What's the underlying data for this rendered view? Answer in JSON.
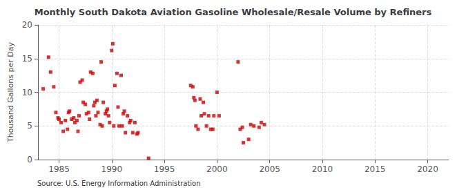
{
  "chart_data": {
    "type": "scatter",
    "title": "Monthly South Dakota Aviation Gasoline Wholesale/Resale Volume by Refiners",
    "ylabel": "Thousand Gallons per Day",
    "annotation": "Source: U.S. Energy Information Administration",
    "color": "#cc0000",
    "marker": "square",
    "grid": true,
    "xlim": [
      1983,
      2022
    ],
    "xticks": [
      1985,
      1990,
      1995,
      2000,
      2005,
      2010,
      2015,
      2020
    ],
    "ylim": [
      0,
      20
    ],
    "yticks": [
      0,
      5,
      10,
      15,
      20
    ],
    "x": [
      1983.5,
      1984.0,
      1984.2,
      1984.5,
      1984.7,
      1984.9,
      1985.0,
      1985.2,
      1985.4,
      1985.6,
      1985.8,
      1985.9,
      1986.0,
      1986.2,
      1986.4,
      1986.5,
      1986.7,
      1986.8,
      1986.9,
      1987.0,
      1987.2,
      1987.3,
      1987.5,
      1987.6,
      1987.8,
      1987.9,
      1988.0,
      1988.2,
      1988.3,
      1988.4,
      1988.5,
      1988.6,
      1988.7,
      1988.9,
      1989.0,
      1989.1,
      1989.2,
      1989.4,
      1989.5,
      1989.6,
      1989.7,
      1989.8,
      1990.0,
      1990.1,
      1990.2,
      1990.3,
      1990.5,
      1990.6,
      1990.7,
      1990.9,
      1991.0,
      1991.1,
      1991.2,
      1991.3,
      1991.5,
      1991.7,
      1991.8,
      1992.0,
      1992.2,
      1992.4,
      1992.5,
      1993.5,
      1997.5,
      1997.7,
      1997.8,
      1997.9,
      1998.0,
      1998.2,
      1998.4,
      1998.5,
      1998.7,
      1998.8,
      1999.0,
      1999.2,
      1999.4,
      1999.6,
      1999.7,
      2000.0,
      2000.2,
      2002.0,
      2002.2,
      2002.4,
      2002.5,
      2003.0,
      2003.2,
      2003.5,
      2004.0,
      2004.2,
      2004.5
    ],
    "values": [
      10.5,
      15.2,
      13.0,
      10.8,
      7.0,
      6.2,
      6.0,
      5.5,
      4.2,
      5.8,
      4.5,
      7.0,
      7.2,
      6.0,
      6.2,
      5.5,
      5.8,
      4.2,
      6.5,
      11.5,
      11.8,
      8.5,
      8.2,
      6.8,
      7.0,
      6.0,
      13.0,
      12.8,
      8.0,
      8.5,
      6.5,
      8.8,
      7.0,
      5.2,
      14.5,
      5.0,
      8.5,
      6.8,
      7.2,
      7.5,
      6.5,
      5.5,
      16.2,
      17.2,
      5.0,
      11.0,
      12.8,
      7.8,
      5.0,
      12.5,
      5.0,
      6.8,
      7.2,
      4.0,
      6.5,
      5.5,
      5.8,
      4.0,
      5.5,
      3.8,
      4.0,
      0.2,
      11.0,
      10.8,
      9.2,
      8.8,
      5.0,
      4.5,
      9.0,
      6.5,
      8.5,
      6.8,
      5.0,
      6.5,
      4.5,
      4.5,
      6.5,
      10.0,
      6.5,
      14.5,
      4.5,
      4.8,
      2.5,
      3.0,
      5.2,
      5.0,
      4.8,
      5.5,
      5.2
    ]
  }
}
